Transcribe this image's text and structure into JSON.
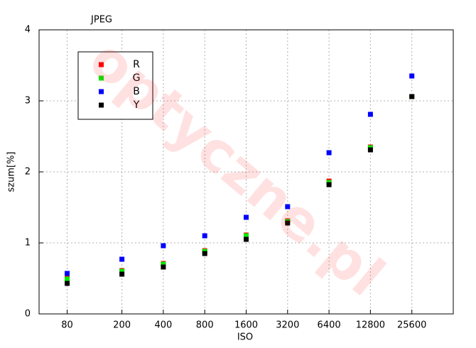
{
  "chart_data": {
    "type": "scatter",
    "title": "JPEG",
    "x_label": "ISO",
    "y_label": "szum[%]",
    "watermark": "optyczne.pl",
    "x": [
      80,
      200,
      400,
      800,
      1600,
      3200,
      6400,
      12800,
      25600
    ],
    "xscale": "log",
    "xlim": [
      50,
      51200
    ],
    "xticks": [
      80,
      200,
      400,
      800,
      1600,
      3200,
      6400,
      12800,
      25600
    ],
    "ylim": [
      0,
      4
    ],
    "yticks": [
      0,
      1,
      2,
      3,
      4
    ],
    "grid": true,
    "legend": "upper left",
    "series": [
      {
        "name": "R",
        "color": "#ff0000",
        "values": [
          0.5,
          0.61,
          0.71,
          0.89,
          1.11,
          1.31,
          1.87,
          2.35,
          3.06
        ]
      },
      {
        "name": "G",
        "color": "#00ee00",
        "values": [
          0.49,
          0.6,
          0.7,
          0.88,
          1.1,
          1.3,
          1.85,
          2.34,
          3.06
        ]
      },
      {
        "name": "B",
        "color": "#0000ff",
        "values": [
          0.57,
          0.77,
          0.96,
          1.1,
          1.36,
          1.51,
          2.27,
          2.81,
          3.35
        ]
      },
      {
        "name": "Y",
        "color": "#000000",
        "values": [
          0.43,
          0.56,
          0.66,
          0.85,
          1.05,
          1.28,
          1.82,
          2.31,
          3.06
        ]
      }
    ]
  }
}
